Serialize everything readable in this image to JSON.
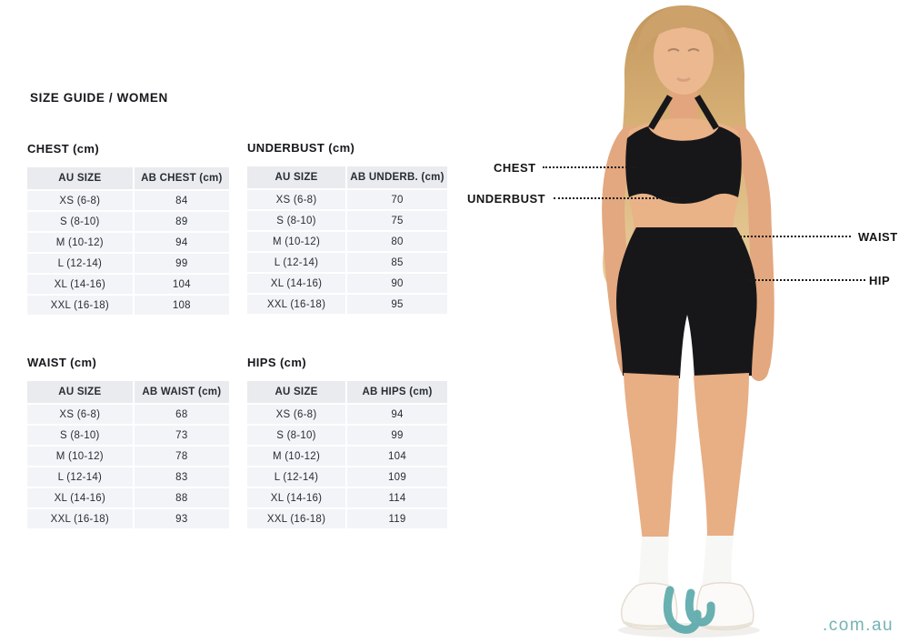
{
  "page": {
    "title": "SIZE GUIDE / WOMEN",
    "watermark": ".com.au"
  },
  "colors": {
    "accent_teal": "#74b3b4",
    "text_dark": "#15171c",
    "table_header_bg": "#e9ebee",
    "table_row_bg": "#f3f4f7",
    "garment_black": "#17171a"
  },
  "tables": [
    {
      "id": "chest",
      "title": "CHEST (cm)",
      "col1": "AU SIZE",
      "col2": "AB CHEST (cm)",
      "rows": [
        [
          "XS (6-8)",
          "84"
        ],
        [
          "S (8-10)",
          "89"
        ],
        [
          "M (10-12)",
          "94"
        ],
        [
          "L (12-14)",
          "99"
        ],
        [
          "XL (14-16)",
          "104"
        ],
        [
          "XXL (16-18)",
          "108"
        ]
      ]
    },
    {
      "id": "underbust",
      "title": "UNDERBUST (cm)",
      "col1": "AU SIZE",
      "col2": "AB UNDERB. (cm)",
      "rows": [
        [
          "XS (6-8)",
          "70"
        ],
        [
          "S (8-10)",
          "75"
        ],
        [
          "M (10-12)",
          "80"
        ],
        [
          "L (12-14)",
          "85"
        ],
        [
          "XL (14-16)",
          "90"
        ],
        [
          "XXL (16-18)",
          "95"
        ]
      ]
    },
    {
      "id": "waist",
      "title": "WAIST (cm)",
      "col1": "AU SIZE",
      "col2": "AB WAIST (cm)",
      "rows": [
        [
          "XS (6-8)",
          "68"
        ],
        [
          "S (8-10)",
          "73"
        ],
        [
          "M (10-12)",
          "78"
        ],
        [
          "L (12-14)",
          "83"
        ],
        [
          "XL (14-16)",
          "88"
        ],
        [
          "XXL (16-18)",
          "93"
        ]
      ]
    },
    {
      "id": "hips",
      "title": "HIPS (cm)",
      "col1": "AU SIZE",
      "col2": "AB HIPS (cm)",
      "rows": [
        [
          "XS (6-8)",
          "94"
        ],
        [
          "S (8-10)",
          "99"
        ],
        [
          "M (10-12)",
          "104"
        ],
        [
          "L (12-14)",
          "109"
        ],
        [
          "XL (14-16)",
          "114"
        ],
        [
          "XXL (16-18)",
          "119"
        ]
      ]
    }
  ],
  "figure_labels": {
    "chest": "CHEST",
    "underbust": "UNDERBUST",
    "waist": "WAIST",
    "hip": "HIP"
  }
}
